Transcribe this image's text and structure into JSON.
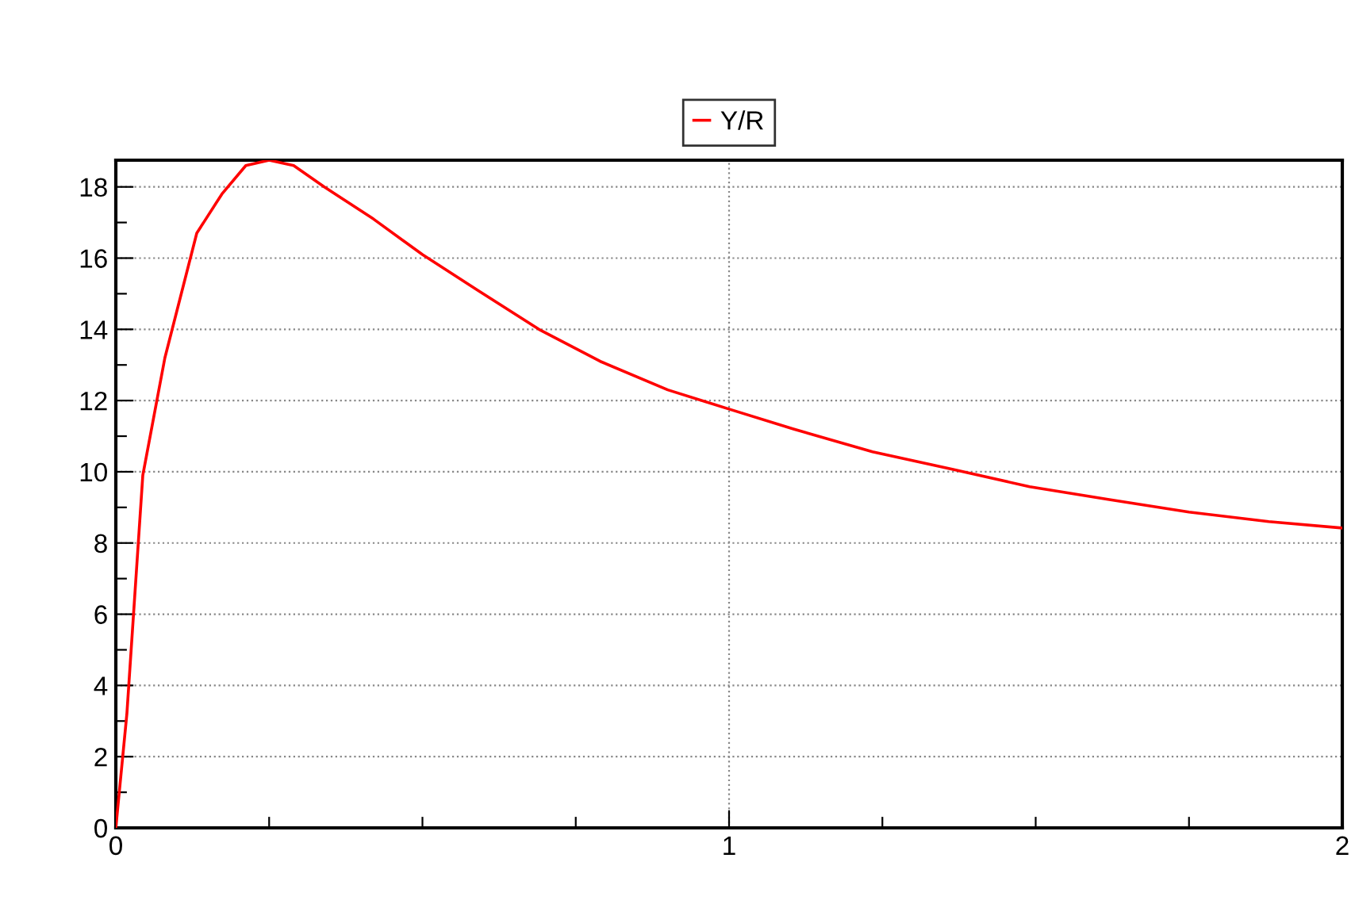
{
  "chart_data": {
    "type": "line",
    "legend": "top",
    "grid": true,
    "line_style": "solid",
    "marker": "none",
    "xlim": [
      0,
      2
    ],
    "ylim": [
      0,
      18.75
    ],
    "xticks": [
      0,
      {
        "value": 0.25,
        "label": null
      },
      {
        "value": 0.5,
        "label": null
      },
      {
        "value": 0.75,
        "label": null
      },
      1,
      {
        "value": 1.25,
        "label": null
      },
      {
        "value": 1.5,
        "label": null
      },
      {
        "value": 1.75,
        "label": null
      },
      2
    ],
    "yticks": [
      0,
      {
        "value": 1,
        "label": null
      },
      2,
      {
        "value": 3,
        "label": null
      },
      4,
      {
        "value": 5,
        "label": null
      },
      6,
      {
        "value": 7,
        "label": null
      },
      8,
      {
        "value": 9,
        "label": null
      },
      10,
      {
        "value": 11,
        "label": null
      },
      12,
      {
        "value": 13,
        "label": null
      },
      14,
      {
        "value": 15,
        "label": null
      },
      16,
      {
        "value": 17,
        "label": null
      },
      18
    ],
    "series": [
      {
        "name": "Y/R",
        "color": "#ff0000",
        "x": [
          0,
          0.018,
          0.044,
          0.08,
          0.132,
          0.173,
          0.212,
          0.25,
          0.29,
          0.34,
          0.42,
          0.5,
          0.59,
          0.69,
          0.79,
          0.9,
          1.0,
          1.105,
          1.234,
          1.364,
          1.49,
          1.62,
          1.75,
          1.88,
          2.0
        ],
        "values": [
          0,
          3.2,
          9.9,
          13.2,
          16.7,
          17.8,
          18.6,
          18.75,
          18.6,
          18.0,
          17.1,
          16.1,
          15.1,
          14.0,
          13.1,
          12.3,
          11.76,
          11.2,
          10.56,
          10.07,
          9.58,
          9.22,
          8.87,
          8.6,
          8.42
        ]
      }
    ]
  }
}
